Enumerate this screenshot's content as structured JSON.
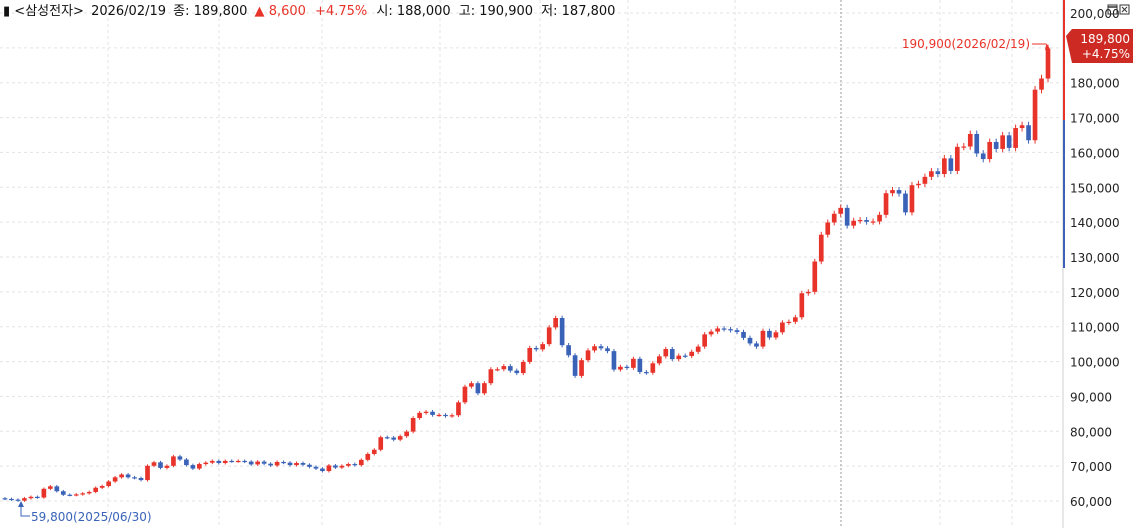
{
  "header": {
    "marker": "▮",
    "stock": "<삼성전자>",
    "date": "2026/02/19",
    "close_label": "종:",
    "close": "189,800",
    "change_arrow": "▲",
    "change": "8,600",
    "change_pct": "+4.75%",
    "open_label": "시:",
    "open": "188,000",
    "high_label": "고:",
    "high": "190,900",
    "low_label": "저:",
    "low": "187,800"
  },
  "annotations": {
    "high_marker": "190,900(2026/02/19)",
    "low_marker": "59,800(2025/06/30)",
    "price_tag": "189,800",
    "price_tag_pct": "+4.75%"
  },
  "colors": {
    "up": "#e8332a",
    "down": "#3a63b8",
    "grid": "#e3e3e3",
    "axis_text": "#222222",
    "price_tag_bg": "#cc2a22"
  },
  "chart_data": {
    "type": "candlestick",
    "title": "",
    "xlabel": "",
    "ylabel": "",
    "ylim": [
      56000,
      203000
    ],
    "y_ticks": [
      "200,000",
      "190,000",
      "180,000",
      "170,000",
      "160,000",
      "150,000",
      "140,000",
      "130,000",
      "120,000",
      "110,000",
      "100,000",
      "90,000",
      "80,000",
      "70,000",
      "60,000"
    ],
    "y_tick_values": [
      200000,
      190000,
      180000,
      170000,
      160000,
      150000,
      140000,
      130000,
      120000,
      110000,
      100000,
      90000,
      80000,
      70000,
      60000
    ],
    "x_start": "2025/06/30",
    "x_end": "2026/02/19",
    "grid": true,
    "closes": [
      60600,
      60400,
      60100,
      60800,
      61200,
      61000,
      63500,
      64200,
      62800,
      61800,
      61700,
      61900,
      62200,
      62600,
      63800,
      64300,
      65600,
      66800,
      67600,
      66800,
      66600,
      66000,
      70100,
      71100,
      69500,
      70100,
      72800,
      71900,
      70300,
      69300,
      70600,
      71000,
      71500,
      70900,
      71500,
      71400,
      71500,
      71300,
      70500,
      71300,
      70700,
      70200,
      71200,
      71000,
      70300,
      70900,
      70400,
      69800,
      69300,
      68600,
      70200,
      69600,
      70100,
      70600,
      70300,
      71800,
      73500,
      74700,
      78300,
      78200,
      77600,
      78600,
      79900,
      83800,
      85300,
      85600,
      84700,
      84700,
      84400,
      84600,
      88300,
      92800,
      93800,
      90900,
      93800,
      97800,
      97800,
      98700,
      97400,
      96700,
      99900,
      103900,
      103500,
      105000,
      109800,
      112500,
      104700,
      101800,
      95900,
      100400,
      103200,
      104400,
      103800,
      103000,
      97700,
      98500,
      98200,
      100800,
      97000,
      96800,
      99500,
      101500,
      103600,
      100700,
      101700,
      101600,
      102800,
      104300,
      107800,
      108600,
      109500,
      109300,
      109000,
      108500,
      106800,
      105200,
      104300,
      108800,
      106900,
      108400,
      111200,
      111400,
      112700,
      119600,
      120000,
      128700,
      136400,
      139900,
      142400,
      144100,
      139000,
      140400,
      140600,
      140100,
      140200,
      142100,
      148300,
      149200,
      148200,
      142800,
      150600,
      151000,
      153000,
      154600,
      153800,
      158300,
      154700,
      161600,
      161700,
      165300,
      159700,
      158100,
      163000,
      161000,
      164900,
      161300,
      167000,
      167800,
      163500,
      178000,
      181200,
      189800
    ],
    "volume_note": "not shown"
  }
}
